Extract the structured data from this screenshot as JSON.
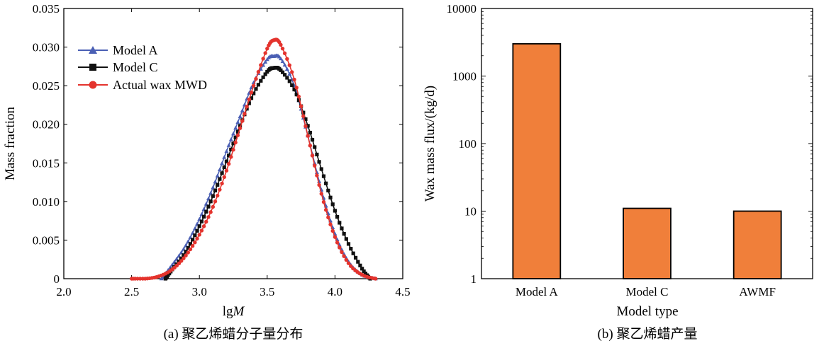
{
  "chart_data": [
    {
      "type": "line",
      "title": "",
      "caption": "(a) 聚乙烯蜡分子量分布",
      "xlabel_prefix": "lg",
      "xlabel_var": "M",
      "ylabel": "Mass fraction",
      "xlim": [
        2.0,
        4.5
      ],
      "ylim": [
        0,
        0.035
      ],
      "xticks": [
        2.0,
        2.5,
        3.0,
        3.5,
        4.0,
        4.5
      ],
      "xtick_labels": [
        "2.0",
        "2.5",
        "3.0",
        "3.5",
        "4.0",
        "4.5"
      ],
      "yticks": [
        0,
        0.005,
        0.01,
        0.015,
        0.02,
        0.025,
        0.03,
        0.035
      ],
      "ytick_labels": [
        "0",
        "0.005",
        "0.010",
        "0.015",
        "0.020",
        "0.025",
        "0.030",
        "0.035"
      ],
      "legend_position": "top-left",
      "series": [
        {
          "name": "Model A",
          "color": "#4a5fb4",
          "marker": "triangle",
          "x": [
            2.72,
            2.8,
            2.9,
            3.0,
            3.1,
            3.2,
            3.3,
            3.4,
            3.5,
            3.55,
            3.6,
            3.7,
            3.8,
            3.9,
            4.0,
            4.1,
            4.2,
            4.3
          ],
          "y": [
            0.0,
            0.0018,
            0.0043,
            0.0077,
            0.0118,
            0.0165,
            0.021,
            0.0254,
            0.0284,
            0.0288,
            0.0285,
            0.025,
            0.0185,
            0.0115,
            0.0058,
            0.0022,
            0.0005,
            0.0
          ]
        },
        {
          "name": "Model C",
          "color": "#111111",
          "marker": "square",
          "x": [
            2.75,
            2.8,
            2.9,
            3.0,
            3.1,
            3.2,
            3.3,
            3.4,
            3.5,
            3.55,
            3.6,
            3.7,
            3.8,
            3.9,
            4.0,
            4.1,
            4.2,
            4.26
          ],
          "y": [
            0.0,
            0.0012,
            0.0035,
            0.0068,
            0.0107,
            0.0152,
            0.0198,
            0.024,
            0.0268,
            0.0273,
            0.027,
            0.0245,
            0.0198,
            0.0142,
            0.0088,
            0.0045,
            0.0013,
            0.0
          ]
        },
        {
          "name": "Actual wax MWD",
          "color": "#e4332d",
          "marker": "circle",
          "x": [
            2.5,
            2.6,
            2.7,
            2.8,
            2.9,
            3.0,
            3.1,
            3.2,
            3.3,
            3.4,
            3.5,
            3.55,
            3.6,
            3.7,
            3.8,
            3.9,
            4.0,
            4.1,
            4.2,
            4.3
          ],
          "y": [
            0.0,
            0.0,
            0.0003,
            0.0012,
            0.003,
            0.0057,
            0.0093,
            0.014,
            0.0195,
            0.025,
            0.0298,
            0.0309,
            0.0303,
            0.0258,
            0.0185,
            0.011,
            0.0054,
            0.002,
            0.0005,
            0.0
          ]
        }
      ]
    },
    {
      "type": "bar",
      "title": "",
      "caption": "(b) 聚乙烯蜡产量",
      "xlabel": "Model type",
      "ylabel": "Wax mass flux/(kg/d)",
      "yscale": "log",
      "ylim": [
        1,
        10000
      ],
      "yticks": [
        1,
        10,
        100,
        1000,
        10000
      ],
      "ytick_labels": [
        "1",
        "10",
        "100",
        "1000",
        "10000"
      ],
      "categories": [
        "Model A",
        "Model C",
        "AWMF"
      ],
      "values": [
        3000,
        11,
        10
      ],
      "bar_color": "#f07f3a"
    }
  ]
}
